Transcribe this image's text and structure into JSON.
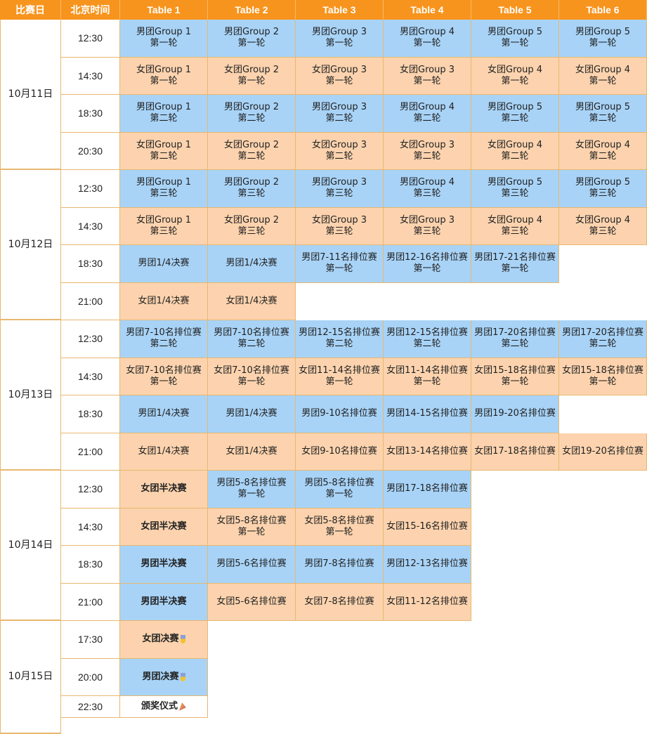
{
  "header": [
    "比赛日",
    "北京时间",
    "Table 1",
    "Table 2",
    "Table 3",
    "Table 4",
    "Table 5",
    "Table 6"
  ],
  "colors": {
    "header": "#F7941D",
    "men": "#A8D3F7",
    "women": "#FCD3AE",
    "border": "#E7B86F"
  },
  "days": [
    {
      "date": "10月11日",
      "slots": [
        {
          "time": "12:30",
          "cells": [
            {
              "t": "男团Group 1\n第一轮",
              "k": "m"
            },
            {
              "t": "男团Group 2\n第一轮",
              "k": "m"
            },
            {
              "t": "男团Group 3\n第一轮",
              "k": "m"
            },
            {
              "t": "男团Group 4\n第一轮",
              "k": "m"
            },
            {
              "t": "男团Group 5\n第一轮",
              "k": "m"
            },
            {
              "t": "男团Group 5\n第一轮",
              "k": "m"
            }
          ]
        },
        {
          "time": "14:30",
          "cells": [
            {
              "t": "女团Group 1\n第一轮",
              "k": "w"
            },
            {
              "t": "女团Group 2\n第一轮",
              "k": "w"
            },
            {
              "t": "女团Group 3\n第一轮",
              "k": "w"
            },
            {
              "t": "女团Group 3\n第一轮",
              "k": "w"
            },
            {
              "t": "女团Group 4\n第一轮",
              "k": "w"
            },
            {
              "t": "女团Group 4\n第一轮",
              "k": "w"
            }
          ]
        },
        {
          "time": "18:30",
          "cells": [
            {
              "t": "男团Group 1\n第二轮",
              "k": "m"
            },
            {
              "t": "男团Group 2\n第二轮",
              "k": "m"
            },
            {
              "t": "男团Group 3\n第二轮",
              "k": "m"
            },
            {
              "t": "男团Group 4\n第二轮",
              "k": "m"
            },
            {
              "t": "男团Group 5\n第二轮",
              "k": "m"
            },
            {
              "t": "男团Group 5\n第二轮",
              "k": "m"
            }
          ]
        },
        {
          "time": "20:30",
          "cells": [
            {
              "t": "女团Group 1\n第二轮",
              "k": "w"
            },
            {
              "t": "女团Group 2\n第二轮",
              "k": "w"
            },
            {
              "t": "女团Group 3\n第二轮",
              "k": "w"
            },
            {
              "t": "女团Group 3\n第二轮",
              "k": "w"
            },
            {
              "t": "女团Group 4\n第二轮",
              "k": "w"
            },
            {
              "t": "女团Group 4\n第二轮",
              "k": "w"
            }
          ]
        }
      ]
    },
    {
      "date": "10月12日",
      "slots": [
        {
          "time": "12:30",
          "cells": [
            {
              "t": "男团Group 1\n第三轮",
              "k": "m"
            },
            {
              "t": "男团Group 2\n第三轮",
              "k": "m"
            },
            {
              "t": "男团Group 3\n第三轮",
              "k": "m"
            },
            {
              "t": "男团Group 4\n第三轮",
              "k": "m"
            },
            {
              "t": "男团Group 5\n第三轮",
              "k": "m"
            },
            {
              "t": "男团Group 5\n第三轮",
              "k": "m"
            }
          ]
        },
        {
          "time": "14:30",
          "cells": [
            {
              "t": "女团Group 1\n第三轮",
              "k": "w"
            },
            {
              "t": "女团Group 2\n第三轮",
              "k": "w"
            },
            {
              "t": "女团Group 3\n第三轮",
              "k": "w"
            },
            {
              "t": "女团Group 3\n第三轮",
              "k": "w"
            },
            {
              "t": "女团Group 4\n第三轮",
              "k": "w"
            },
            {
              "t": "女团Group 4\n第三轮",
              "k": "w"
            }
          ]
        },
        {
          "time": "18:30",
          "cells": [
            {
              "t": "男团1/4决赛",
              "k": "m"
            },
            {
              "t": "男团1/4决赛",
              "k": "m"
            },
            {
              "t": "男团7-11名排位赛\n第一轮",
              "k": "m"
            },
            {
              "t": "男团12-16名排位赛\n第一轮",
              "k": "m"
            },
            {
              "t": "男团17-21名排位赛\n第一轮",
              "k": "m"
            },
            null
          ]
        },
        {
          "time": "21:00",
          "cells": [
            {
              "t": "女团1/4决赛",
              "k": "w"
            },
            {
              "t": "女团1/4决赛",
              "k": "w"
            },
            null,
            null,
            null,
            null
          ]
        }
      ]
    },
    {
      "date": "10月13日",
      "slots": [
        {
          "time": "12:30",
          "cells": [
            {
              "t": "男团7-10名排位赛\n第二轮",
              "k": "m"
            },
            {
              "t": "男团7-10名排位赛\n第二轮",
              "k": "m"
            },
            {
              "t": "男团12-15名排位赛\n第二轮",
              "k": "m"
            },
            {
              "t": "男团12-15名排位赛\n第二轮",
              "k": "m"
            },
            {
              "t": "男团17-20名排位赛\n第二轮",
              "k": "m"
            },
            {
              "t": "男团17-20名排位赛\n第二轮",
              "k": "m"
            }
          ]
        },
        {
          "time": "14:30",
          "cells": [
            {
              "t": "女团7-10名排位赛\n第一轮",
              "k": "w"
            },
            {
              "t": "女团7-10名排位赛\n第一轮",
              "k": "w"
            },
            {
              "t": "女团11-14名排位赛\n第一轮",
              "k": "w"
            },
            {
              "t": "女团11-14名排位赛\n第一轮",
              "k": "w"
            },
            {
              "t": "女团15-18名排位赛\n第一轮",
              "k": "w"
            },
            {
              "t": "女团15-18名排位赛\n第一轮",
              "k": "w"
            }
          ]
        },
        {
          "time": "18:30",
          "cells": [
            {
              "t": "男团1/4决赛",
              "k": "m"
            },
            {
              "t": "男团1/4决赛",
              "k": "m"
            },
            {
              "t": "男团9-10名排位赛",
              "k": "m"
            },
            {
              "t": "男团14-15名排位赛",
              "k": "m"
            },
            {
              "t": "男团19-20名排位赛",
              "k": "m"
            },
            null
          ]
        },
        {
          "time": "21:00",
          "cells": [
            {
              "t": "女团1/4决赛",
              "k": "w"
            },
            {
              "t": "女团1/4决赛",
              "k": "w"
            },
            {
              "t": "女团9-10名排位赛",
              "k": "w"
            },
            {
              "t": "女团13-14名排位赛",
              "k": "w"
            },
            {
              "t": "女团17-18名排位赛",
              "k": "w"
            },
            {
              "t": "女团19-20名排位赛",
              "k": "w"
            }
          ]
        }
      ]
    },
    {
      "date": "10月14日",
      "slots": [
        {
          "time": "12:30",
          "cells": [
            {
              "t": "女团半决赛",
              "k": "w",
              "b": true
            },
            {
              "t": "男团5-8名排位赛\n第一轮",
              "k": "m"
            },
            {
              "t": "男团5-8名排位赛\n第一轮",
              "k": "m"
            },
            {
              "t": "男团17-18名排位赛",
              "k": "m"
            },
            null,
            null
          ]
        },
        {
          "time": "14:30",
          "cells": [
            {
              "t": "女团半决赛",
              "k": "w",
              "b": true
            },
            {
              "t": "女团5-8名排位赛\n第一轮",
              "k": "w"
            },
            {
              "t": "女团5-8名排位赛\n第一轮",
              "k": "w"
            },
            {
              "t": "女团15-16名排位赛",
              "k": "w"
            },
            null,
            null
          ]
        },
        {
          "time": "18:30",
          "cells": [
            {
              "t": "男团半决赛",
              "k": "m",
              "b": true
            },
            {
              "t": "男团5-6名排位赛",
              "k": "m"
            },
            {
              "t": "男团7-8名排位赛",
              "k": "m"
            },
            {
              "t": "男团12-13名排位赛",
              "k": "m"
            },
            null,
            null
          ]
        },
        {
          "time": "21:00",
          "cells": [
            {
              "t": "男团半决赛",
              "k": "m",
              "b": true
            },
            {
              "t": "女团5-6名排位赛",
              "k": "w"
            },
            {
              "t": "女团7-8名排位赛",
              "k": "w"
            },
            {
              "t": "女团11-12名排位赛",
              "k": "w"
            },
            null,
            null
          ]
        }
      ]
    },
    {
      "date": "10月15日",
      "slots": [
        {
          "time": "17:30",
          "cells": [
            {
              "t": "女团决赛",
              "k": "w",
              "b": true,
              "icon": "medal-icon"
            },
            null,
            null,
            null,
            null,
            null
          ]
        },
        {
          "time": "20:00",
          "cells": [
            {
              "t": "男团决赛",
              "k": "m",
              "b": true,
              "icon": "medal-icon"
            },
            null,
            null,
            null,
            null,
            null
          ]
        },
        {
          "time": "22:30",
          "cells": [
            {
              "t": "颁奖仪式",
              "k": "p",
              "b": true,
              "icon": "party-popper-icon"
            },
            null,
            null,
            null,
            null,
            null
          ]
        }
      ]
    }
  ]
}
